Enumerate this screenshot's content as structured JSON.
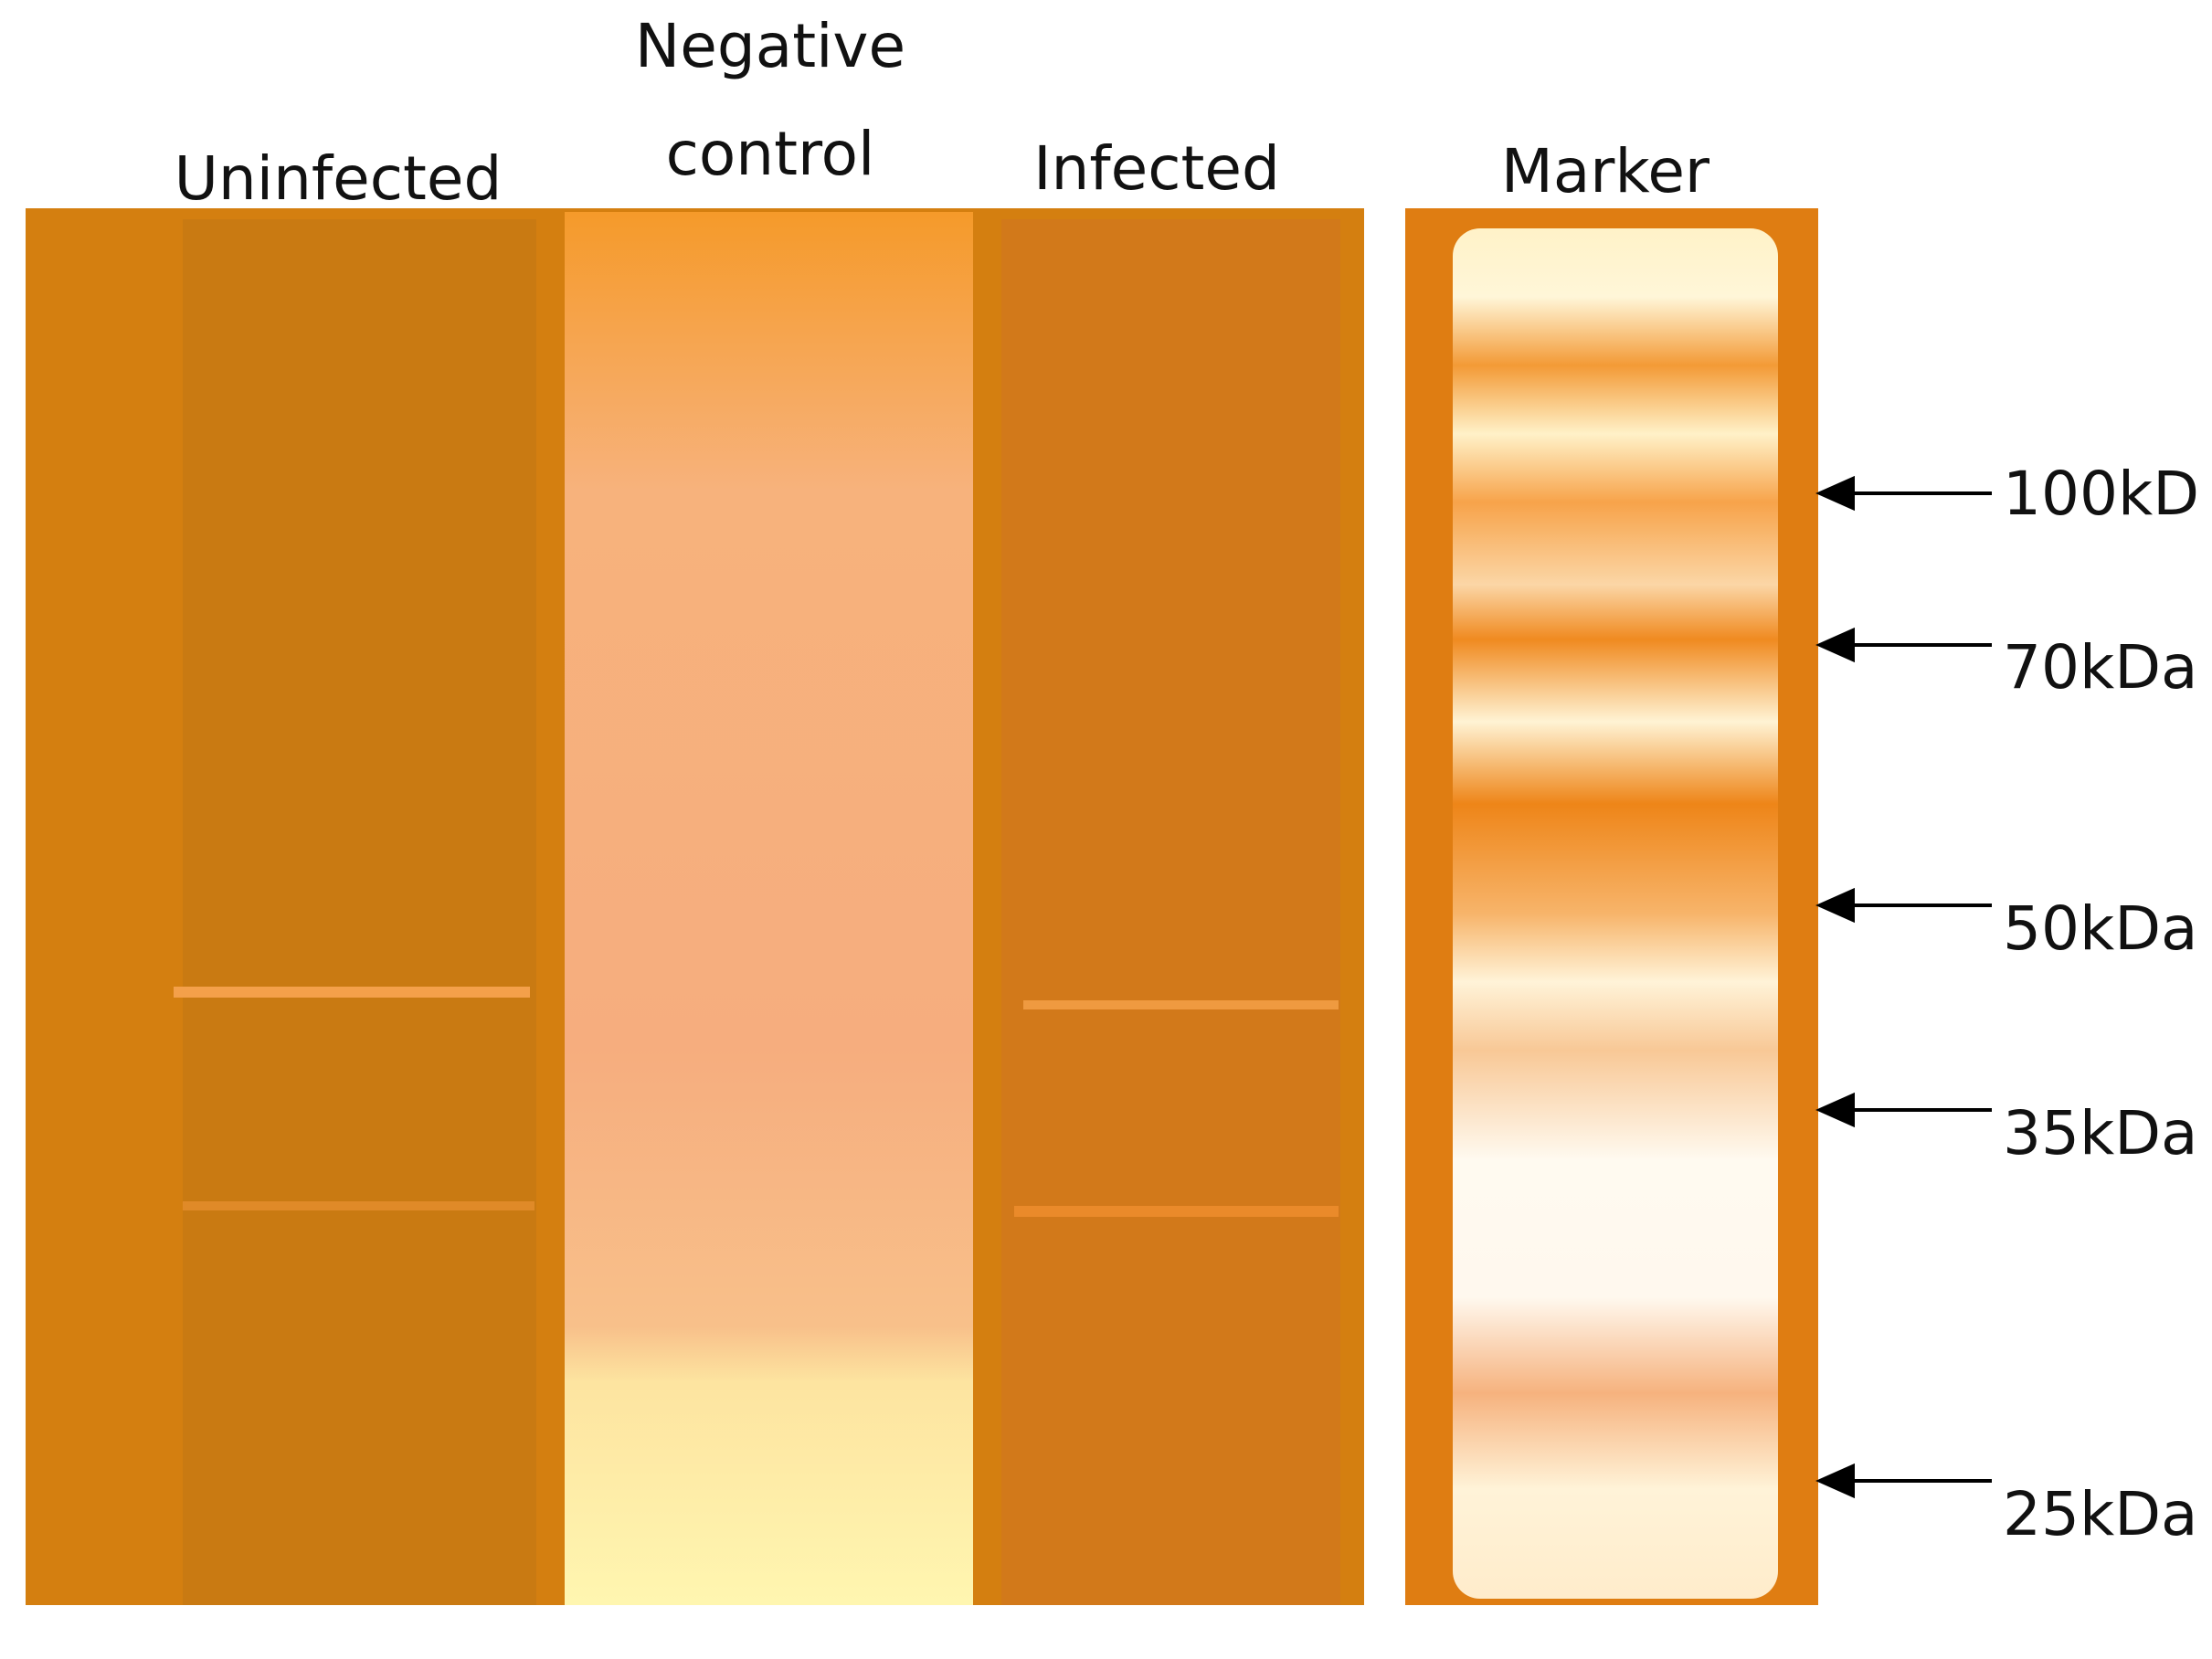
{
  "lanes": [
    {
      "label": "Uninfected"
    },
    {
      "label": "Negative control"
    },
    {
      "label": "Infected"
    }
  ],
  "marker": {
    "label": "Marker",
    "bands": [
      "100kD",
      "70kDa",
      "50kDa",
      "35kDa",
      "25kDa"
    ]
  }
}
